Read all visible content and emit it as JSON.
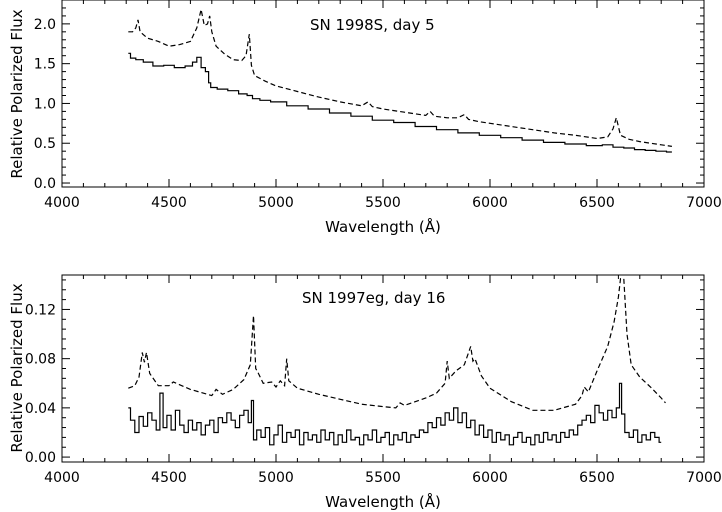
{
  "chart_data": [
    {
      "type": "line",
      "annotation": "SN 1998S, day 5",
      "xlabel": "Wavelength (Å)",
      "ylabel": "Relative Polarized Flux",
      "xlim": [
        4000,
        7000
      ],
      "ylim": [
        -0.05,
        2.3
      ],
      "xticks": [
        "4000",
        "4500",
        "5000",
        "5500",
        "6000",
        "6500",
        "7000"
      ],
      "yticks": [
        "0.0",
        "0.5",
        "1.0",
        "1.5",
        "2.0"
      ],
      "xtick_values": [
        4000,
        4500,
        5000,
        5500,
        6000,
        6500,
        7000
      ],
      "ytick_values": [
        0.0,
        0.5,
        1.0,
        1.5,
        2.0
      ],
      "series": [
        {
          "name": "dashed",
          "style": "dashed",
          "x": [
            4310,
            4330,
            4345,
            4355,
            4365,
            4400,
            4450,
            4500,
            4550,
            4600,
            4630,
            4650,
            4665,
            4680,
            4690,
            4700,
            4720,
            4760,
            4800,
            4840,
            4860,
            4875,
            4885,
            4900,
            4950,
            5000,
            5100,
            5200,
            5300,
            5400,
            5430,
            5450,
            5500,
            5600,
            5700,
            5720,
            5740,
            5800,
            5850,
            5880,
            5900,
            5950,
            6000,
            6100,
            6200,
            6300,
            6400,
            6500,
            6550,
            6575,
            6590,
            6610,
            6650,
            6700,
            6750,
            6800,
            6850
          ],
          "y": [
            1.9,
            1.9,
            1.95,
            2.05,
            1.9,
            1.82,
            1.78,
            1.72,
            1.74,
            1.78,
            1.95,
            2.18,
            1.98,
            2.0,
            2.1,
            1.9,
            1.72,
            1.62,
            1.55,
            1.54,
            1.6,
            1.87,
            1.48,
            1.35,
            1.28,
            1.22,
            1.15,
            1.08,
            1.02,
            0.97,
            1.02,
            0.96,
            0.93,
            0.89,
            0.85,
            0.9,
            0.84,
            0.82,
            0.82,
            0.86,
            0.8,
            0.77,
            0.75,
            0.71,
            0.67,
            0.63,
            0.6,
            0.56,
            0.58,
            0.68,
            0.82,
            0.6,
            0.55,
            0.52,
            0.5,
            0.48,
            0.46
          ]
        },
        {
          "name": "solid",
          "style": "solid",
          "x": [
            4310,
            4330,
            4360,
            4400,
            4450,
            4500,
            4550,
            4600,
            4620,
            4640,
            4660,
            4680,
            4690,
            4700,
            4750,
            4800,
            4850,
            4880,
            4900,
            4950,
            5000,
            5100,
            5200,
            5300,
            5400,
            5500,
            5600,
            5700,
            5800,
            5900,
            6000,
            6100,
            6200,
            6300,
            6400,
            6500,
            6550,
            6600,
            6650,
            6700,
            6750,
            6800,
            6850
          ],
          "y": [
            1.63,
            1.57,
            1.55,
            1.52,
            1.47,
            1.48,
            1.45,
            1.47,
            1.52,
            1.58,
            1.45,
            1.4,
            1.26,
            1.2,
            1.18,
            1.16,
            1.12,
            1.1,
            1.06,
            1.04,
            1.02,
            0.97,
            0.93,
            0.88,
            0.84,
            0.79,
            0.76,
            0.71,
            0.67,
            0.63,
            0.6,
            0.57,
            0.54,
            0.51,
            0.49,
            0.47,
            0.48,
            0.45,
            0.44,
            0.42,
            0.41,
            0.4,
            0.39
          ]
        }
      ]
    },
    {
      "type": "line",
      "annotation": "SN 1997eg, day 16",
      "xlabel": "Wavelength (Å)",
      "ylabel": "Relative Polarized Flux",
      "xlim": [
        4000,
        7000
      ],
      "ylim": [
        -0.004,
        0.148
      ],
      "xticks": [
        "4000",
        "4500",
        "5000",
        "5500",
        "6000",
        "6500",
        "7000"
      ],
      "yticks": [
        "0.00",
        "0.04",
        "0.08",
        "0.12"
      ],
      "xtick_values": [
        4000,
        4500,
        5000,
        5500,
        6000,
        6500,
        7000
      ],
      "ytick_values": [
        0.0,
        0.04,
        0.08,
        0.12
      ],
      "series": [
        {
          "name": "dashed",
          "style": "dashed",
          "x": [
            4310,
            4340,
            4360,
            4375,
            4385,
            4395,
            4410,
            4450,
            4500,
            4520,
            4600,
            4700,
            4720,
            4750,
            4800,
            4850,
            4880,
            4895,
            4905,
            4915,
            4940,
            4980,
            5000,
            5020,
            5040,
            5050,
            5060,
            5100,
            5200,
            5300,
            5400,
            5500,
            5560,
            5580,
            5600,
            5700,
            5750,
            5790,
            5800,
            5810,
            5840,
            5880,
            5910,
            5920,
            5930,
            5960,
            6000,
            6100,
            6200,
            6300,
            6400,
            6430,
            6440,
            6460,
            6500,
            6550,
            6580,
            6600,
            6610,
            6625,
            6640,
            6660,
            6700,
            6750,
            6800,
            6820
          ],
          "y": [
            0.056,
            0.058,
            0.065,
            0.085,
            0.077,
            0.085,
            0.068,
            0.058,
            0.058,
            0.061,
            0.055,
            0.05,
            0.055,
            0.051,
            0.055,
            0.063,
            0.075,
            0.115,
            0.072,
            0.069,
            0.06,
            0.061,
            0.057,
            0.062,
            0.058,
            0.08,
            0.062,
            0.056,
            0.051,
            0.047,
            0.043,
            0.041,
            0.04,
            0.044,
            0.042,
            0.048,
            0.052,
            0.06,
            0.078,
            0.064,
            0.07,
            0.075,
            0.09,
            0.078,
            0.08,
            0.066,
            0.056,
            0.045,
            0.038,
            0.038,
            0.043,
            0.05,
            0.057,
            0.053,
            0.07,
            0.09,
            0.11,
            0.13,
            0.145,
            0.145,
            0.1,
            0.075,
            0.065,
            0.057,
            0.048,
            0.044
          ]
        },
        {
          "name": "solid",
          "style": "solid",
          "x": [
            4310,
            4330,
            4350,
            4370,
            4390,
            4410,
            4430,
            4450,
            4465,
            4480,
            4500,
            4520,
            4540,
            4560,
            4580,
            4600,
            4620,
            4640,
            4660,
            4680,
            4700,
            4720,
            4740,
            4760,
            4780,
            4800,
            4820,
            4840,
            4860,
            4880,
            4890,
            4900,
            4920,
            4940,
            4960,
            4980,
            5000,
            5020,
            5040,
            5060,
            5080,
            5100,
            5120,
            5140,
            5160,
            5180,
            5200,
            5220,
            5240,
            5260,
            5280,
            5300,
            5320,
            5340,
            5360,
            5380,
            5400,
            5420,
            5440,
            5460,
            5480,
            5500,
            5520,
            5540,
            5560,
            5580,
            5600,
            5620,
            5640,
            5660,
            5680,
            5700,
            5720,
            5740,
            5760,
            5780,
            5800,
            5820,
            5840,
            5860,
            5880,
            5900,
            5920,
            5940,
            5960,
            5980,
            6000,
            6020,
            6040,
            6060,
            6080,
            6100,
            6120,
            6140,
            6160,
            6180,
            6200,
            6220,
            6240,
            6260,
            6280,
            6300,
            6320,
            6340,
            6360,
            6380,
            6400,
            6420,
            6440,
            6460,
            6480,
            6500,
            6520,
            6540,
            6560,
            6580,
            6600,
            6610,
            6620,
            6640,
            6660,
            6680,
            6700,
            6720,
            6740,
            6760,
            6780,
            6800
          ],
          "y": [
            0.04,
            0.03,
            0.02,
            0.033,
            0.025,
            0.036,
            0.03,
            0.022,
            0.052,
            0.024,
            0.034,
            0.022,
            0.038,
            0.026,
            0.02,
            0.03,
            0.022,
            0.028,
            0.018,
            0.026,
            0.03,
            0.02,
            0.032,
            0.028,
            0.036,
            0.03,
            0.024,
            0.034,
            0.038,
            0.028,
            0.046,
            0.014,
            0.022,
            0.016,
            0.024,
            0.01,
            0.018,
            0.026,
            0.012,
            0.02,
            0.016,
            0.022,
            0.01,
            0.02,
            0.014,
            0.018,
            0.012,
            0.022,
            0.014,
            0.02,
            0.01,
            0.018,
            0.012,
            0.022,
            0.014,
            0.016,
            0.01,
            0.018,
            0.014,
            0.022,
            0.012,
            0.016,
            0.02,
            0.01,
            0.018,
            0.014,
            0.02,
            0.012,
            0.018,
            0.016,
            0.022,
            0.02,
            0.028,
            0.024,
            0.032,
            0.026,
            0.036,
            0.03,
            0.04,
            0.028,
            0.036,
            0.024,
            0.03,
            0.018,
            0.026,
            0.016,
            0.022,
            0.012,
            0.02,
            0.014,
            0.018,
            0.01,
            0.016,
            0.02,
            0.012,
            0.016,
            0.01,
            0.018,
            0.012,
            0.02,
            0.014,
            0.018,
            0.012,
            0.02,
            0.016,
            0.022,
            0.018,
            0.026,
            0.03,
            0.034,
            0.028,
            0.042,
            0.036,
            0.03,
            0.038,
            0.032,
            0.04,
            0.06,
            0.035,
            0.02,
            0.016,
            0.022,
            0.012,
            0.018,
            0.014,
            0.02,
            0.016,
            0.012
          ]
        }
      ]
    }
  ]
}
